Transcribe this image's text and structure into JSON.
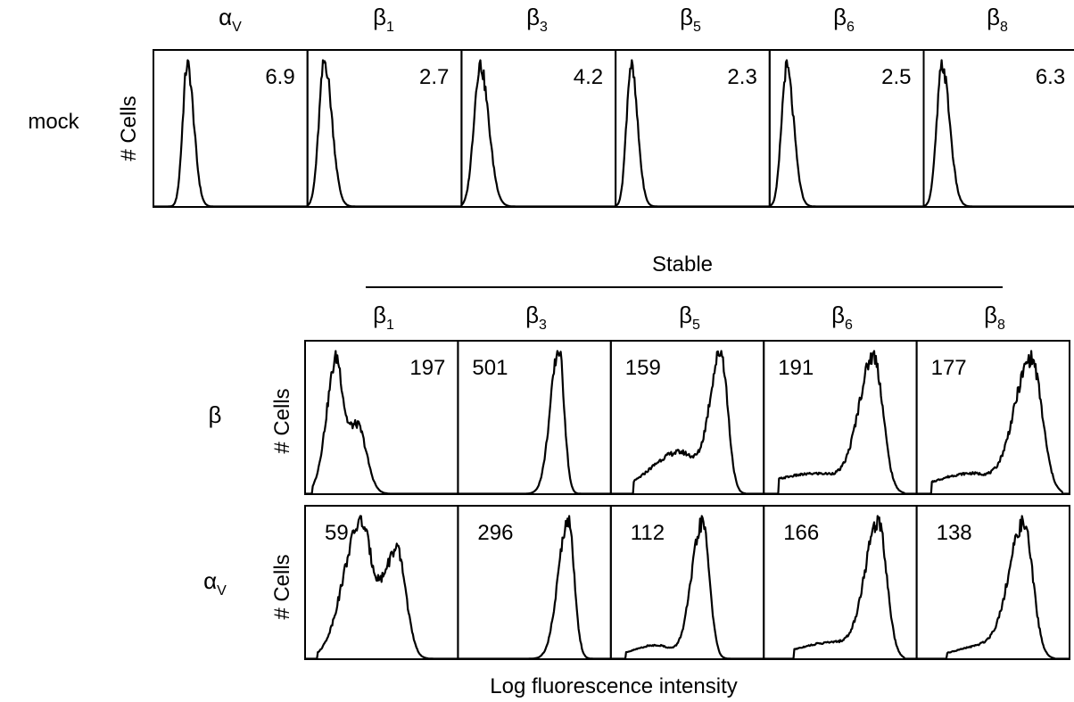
{
  "chart_data": {
    "type": "histogram-grid",
    "mock": {
      "row_label": "mock",
      "y_label": "# Cells",
      "panels": [
        {
          "greek": "α",
          "sub": "V",
          "value": "6.9"
        },
        {
          "greek": "β",
          "sub": "1",
          "value": "2.7"
        },
        {
          "greek": "β",
          "sub": "3",
          "value": "4.2"
        },
        {
          "greek": "β",
          "sub": "5",
          "value": "2.3"
        },
        {
          "greek": "β",
          "sub": "6",
          "value": "2.5"
        },
        {
          "greek": "β",
          "sub": "8",
          "value": "6.3"
        }
      ]
    },
    "stable": {
      "title": "Stable",
      "columns": [
        {
          "greek": "β",
          "sub": "1"
        },
        {
          "greek": "β",
          "sub": "3"
        },
        {
          "greek": "β",
          "sub": "5"
        },
        {
          "greek": "β",
          "sub": "6"
        },
        {
          "greek": "β",
          "sub": "8"
        }
      ],
      "rows": [
        {
          "label_greek": "β",
          "label_sub": "",
          "y_label": "# Cells",
          "values": [
            "197",
            "501",
            "159",
            "191",
            "177"
          ]
        },
        {
          "label_greek": "α",
          "label_sub": "V",
          "y_label": "# Cells",
          "values": [
            "59",
            "296",
            "112",
            "166",
            "138"
          ]
        }
      ],
      "x_label": "Log fluorescence intensity"
    }
  }
}
